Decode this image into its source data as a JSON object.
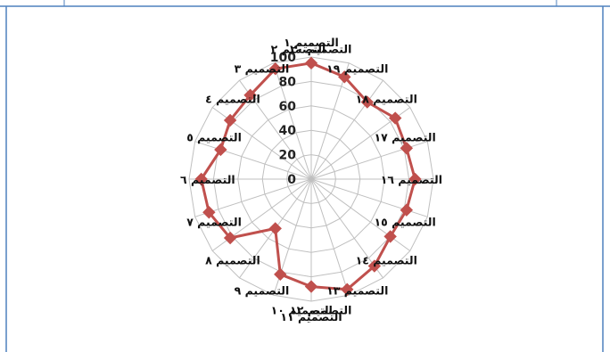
{
  "chart_data": {
    "type": "radar",
    "categories": [
      "التصميم ١",
      "التصميم ٢٠",
      "التصميم ١٩",
      "التصميم ١٨",
      "التصميم ١٧",
      "التصميم ١٦",
      "التصميم ١٥",
      "التصميم ١٤",
      "التصميم ١٣",
      "التصميم ١٢",
      "التصميم ١١",
      "التصميم ١٠",
      "التصميم ٩",
      "التصميم ٨",
      "التصميم ٧",
      "التصميم ٦",
      "التصميم ٥",
      "التصميم ٤",
      "التصميم ٣",
      "التصميم ٢"
    ],
    "series": [
      {
        "values": [
          95,
          88,
          78,
          85,
          82,
          85,
          82,
          80,
          88,
          95,
          88,
          82,
          50,
          82,
          88,
          90,
          78,
          82,
          85,
          95
        ]
      }
    ],
    "ticks": [
      "0",
      "20",
      "40",
      "60",
      "80",
      "100"
    ],
    "ylim": [
      0,
      100
    ],
    "grid": true,
    "legend": "none",
    "colors": {
      "series": "#c0504d",
      "grid": "#bfbfbf",
      "frame": "#4f81bd"
    }
  }
}
